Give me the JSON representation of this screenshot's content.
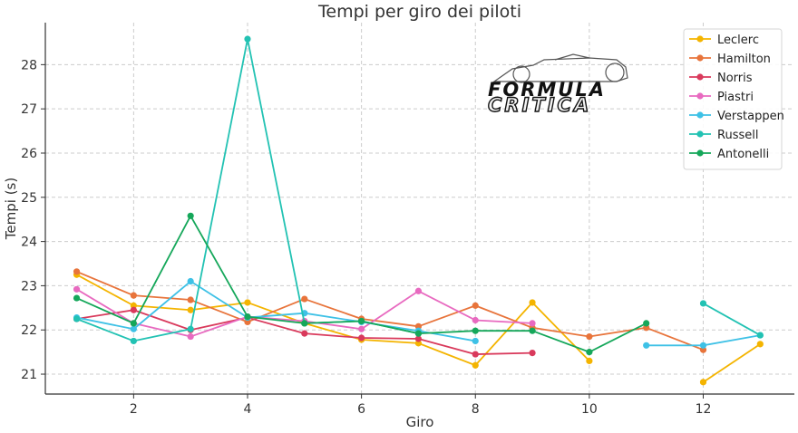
{
  "chart_data": {
    "type": "line",
    "title": "Tempi per giro dei piloti",
    "xlabel": "Giro",
    "ylabel": "Tempi (s)",
    "xlim": [
      0.45,
      13.6
    ],
    "ylim": [
      20.55,
      28.95
    ],
    "xticks": [
      2,
      4,
      6,
      8,
      10,
      12
    ],
    "yticks": [
      21,
      22,
      23,
      24,
      25,
      26,
      27,
      28
    ],
    "grid": true,
    "legend_position": "top-right",
    "series": [
      {
        "name": "Leclerc",
        "color": "#f4b400",
        "points": [
          [
            1,
            23.25
          ],
          [
            2,
            22.55
          ],
          [
            3,
            22.45
          ],
          [
            4,
            22.62
          ],
          [
            5,
            22.15
          ],
          [
            6,
            21.78
          ],
          [
            7,
            21.7
          ],
          [
            8,
            21.2
          ],
          [
            9,
            22.62
          ],
          [
            10,
            21.3
          ],
          [
            null,
            null
          ],
          [
            12,
            20.82
          ],
          [
            13,
            21.68
          ]
        ]
      },
      {
        "name": "Hamilton",
        "color": "#e8743b",
        "points": [
          [
            1,
            23.32
          ],
          [
            2,
            22.78
          ],
          [
            3,
            22.68
          ],
          [
            4,
            22.18
          ],
          [
            5,
            22.7
          ],
          [
            6,
            22.25
          ],
          [
            7,
            22.08
          ],
          [
            8,
            22.55
          ],
          [
            9,
            22.05
          ],
          [
            10,
            21.85
          ],
          [
            11,
            22.05
          ],
          [
            12,
            21.55
          ]
        ]
      },
      {
        "name": "Norris",
        "color": "#d93a5c",
        "points": [
          [
            1,
            22.25
          ],
          [
            2,
            22.45
          ],
          [
            3,
            22.0
          ],
          [
            4,
            22.28
          ],
          [
            5,
            21.92
          ],
          [
            6,
            21.82
          ],
          [
            7,
            21.8
          ],
          [
            8,
            21.45
          ],
          [
            9,
            21.48
          ]
        ]
      },
      {
        "name": "Piastri",
        "color": "#e86ac0",
        "points": [
          [
            1,
            22.92
          ],
          [
            2,
            22.15
          ],
          [
            3,
            21.85
          ],
          [
            4,
            22.3
          ],
          [
            5,
            22.2
          ],
          [
            6,
            22.02
          ],
          [
            7,
            22.88
          ],
          [
            8,
            22.22
          ],
          [
            9,
            22.15
          ]
        ]
      },
      {
        "name": "Verstappen",
        "color": "#3ec1e6",
        "points": [
          [
            1,
            22.28
          ],
          [
            2,
            22.02
          ],
          [
            3,
            23.1
          ],
          [
            4,
            22.28
          ],
          [
            5,
            22.38
          ],
          [
            6,
            22.18
          ],
          [
            7,
            21.98
          ],
          [
            8,
            21.75
          ],
          [
            null,
            null
          ],
          [
            null,
            null
          ],
          [
            11,
            21.65
          ],
          [
            12,
            21.65
          ],
          [
            13,
            21.88
          ]
        ]
      },
      {
        "name": "Russell",
        "color": "#22c2b3",
        "points": [
          [
            1,
            22.25
          ],
          [
            2,
            21.75
          ],
          [
            3,
            22.02
          ],
          [
            4,
            28.58
          ],
          [
            5,
            22.15
          ],
          [
            6,
            22.2
          ],
          [
            7,
            21.92
          ],
          [
            null,
            null
          ],
          [
            null,
            null
          ],
          [
            null,
            null
          ],
          [
            null,
            null
          ],
          [
            12,
            22.6
          ],
          [
            13,
            21.88
          ]
        ]
      },
      {
        "name": "Antonelli",
        "color": "#15a75a",
        "points": [
          [
            1,
            22.72
          ],
          [
            2,
            22.15
          ],
          [
            3,
            24.58
          ],
          [
            4,
            22.3
          ],
          [
            5,
            22.15
          ],
          [
            6,
            22.2
          ],
          [
            7,
            21.92
          ],
          [
            8,
            21.98
          ],
          [
            9,
            21.98
          ],
          [
            10,
            21.5
          ],
          [
            11,
            22.15
          ]
        ]
      }
    ]
  },
  "logo": {
    "line1": "FORMULA",
    "line2": "CRITICA"
  }
}
